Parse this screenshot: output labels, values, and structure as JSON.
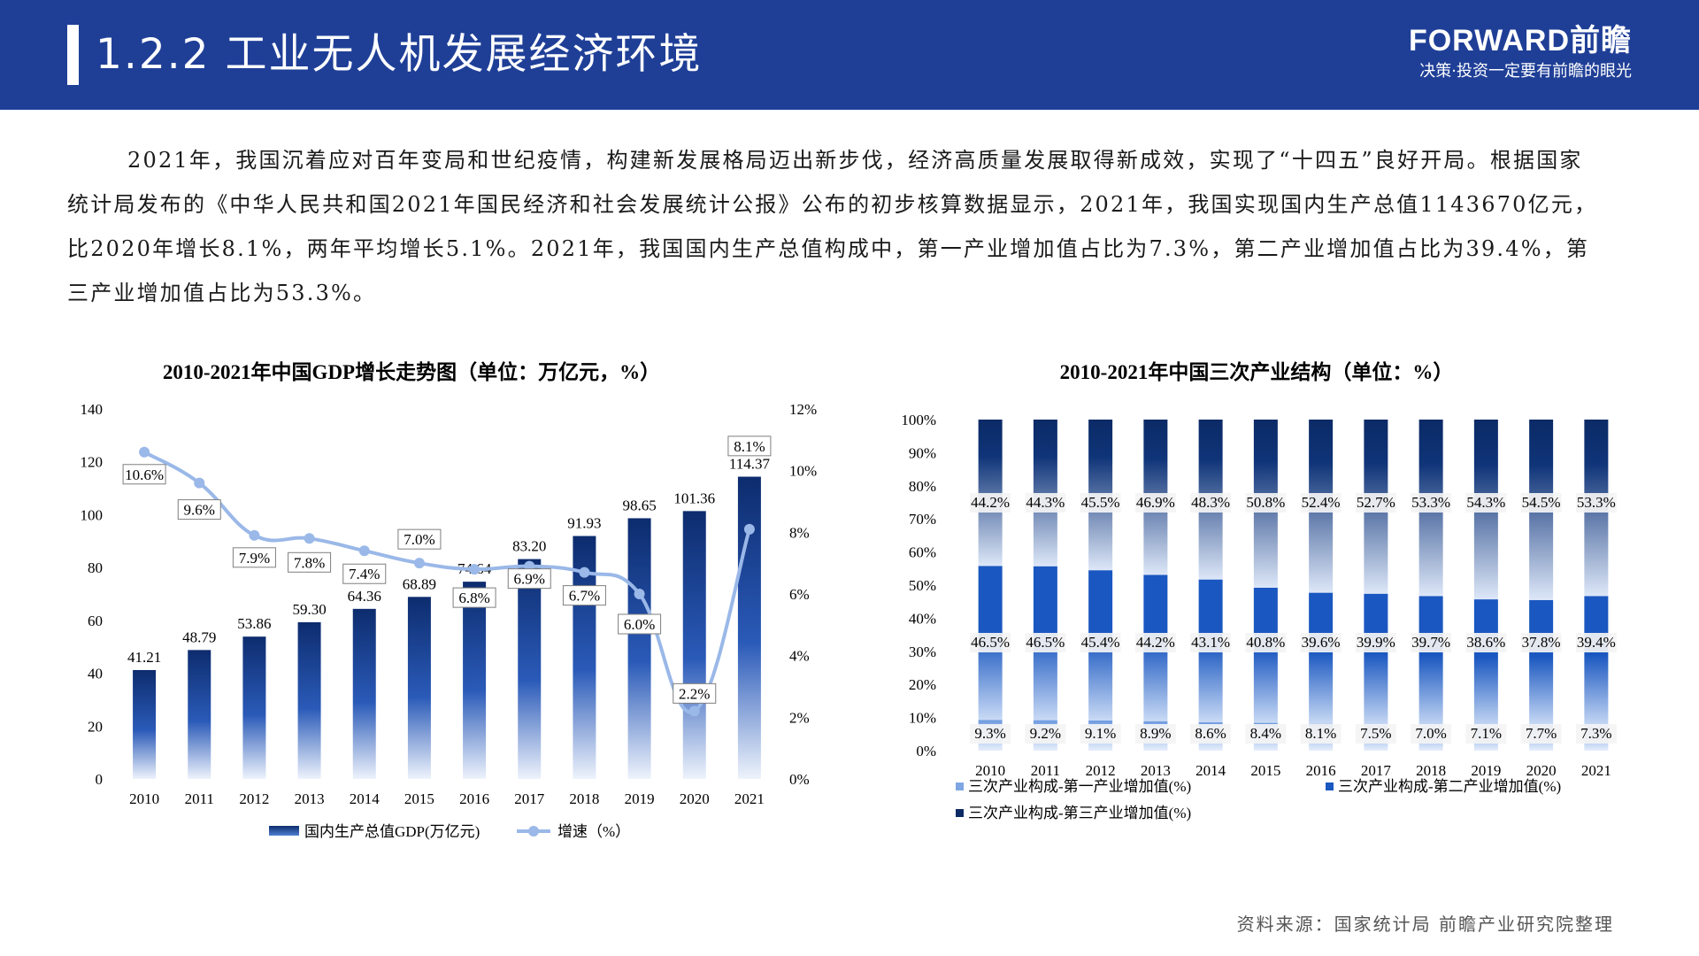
{
  "header": {
    "title": "1.2.2 工业无人机发展经济环境",
    "brand": "FORWARD前瞻",
    "slogan": "决策·投资一定要有前瞻的眼光"
  },
  "intro": "2021年，我国沉着应对百年变局和世纪疫情，构建新发展格局迈出新步伐，经济高质量发展取得新成效，实现了“十四五”良好开局。根据国家统计局发布的《中华人民共和国2021年国民经济和社会发展统计公报》公布的初步核算数据显示，2021年，我国实现国内生产总值1143670亿元，比2020年增长8.1%，两年平均增长5.1%。2021年，我国国内生产总值构成中，第一产业增加值占比为7.3%，第二产业增加值占比为39.4%，第三产业增加值占比为53.3%。",
  "source": "资料来源：国家统计局 前瞻产业研究院整理",
  "colors": {
    "header": "#1f3f97",
    "bar_dark": "#0d2c6e",
    "bar_mid": "#1a57c0",
    "line": "#9ab8e8"
  },
  "chart_data": [
    {
      "type": "bar",
      "title": "2010-2021年中国GDP增长走势图（单位：万亿元，%）",
      "categories": [
        "2010",
        "2011",
        "2012",
        "2013",
        "2014",
        "2015",
        "2016",
        "2017",
        "2018",
        "2019",
        "2020",
        "2021"
      ],
      "y_ticks": [
        "0",
        "20",
        "40",
        "60",
        "80",
        "100",
        "120",
        "140"
      ],
      "y2_ticks": [
        "0%",
        "2%",
        "4%",
        "6%",
        "8%",
        "10%",
        "12%"
      ],
      "ylim": [
        0,
        140
      ],
      "y2lim": [
        0,
        12
      ],
      "series": [
        {
          "name": "国内生产总值GDP(万亿元)",
          "type": "bar",
          "axis": "left",
          "values": [
            41.21,
            48.79,
            53.86,
            59.3,
            64.36,
            68.89,
            74.64,
            83.2,
            91.93,
            98.65,
            101.36,
            114.37
          ],
          "labels": [
            "41.21",
            "48.79",
            "53.86",
            "59.30",
            "64.36",
            "68.89",
            "74.64",
            "83.20",
            "91.93",
            "98.65",
            "101.36",
            "114.37"
          ]
        },
        {
          "name": "增速（%）",
          "type": "line",
          "axis": "right",
          "values": [
            10.6,
            9.6,
            7.9,
            7.8,
            7.4,
            7.0,
            6.8,
            6.9,
            6.7,
            6.0,
            2.2,
            8.1
          ],
          "labels": [
            "10.6%",
            "9.6%",
            "7.9%",
            "7.8%",
            "7.4%",
            "7.0%",
            "6.8%",
            "6.9%",
            "6.7%",
            "6.0%",
            "2.2%",
            "8.1%"
          ]
        }
      ]
    },
    {
      "type": "bar",
      "stacked": true,
      "title": "2010-2021年中国三次产业结构（单位：%）",
      "categories": [
        "2010",
        "2011",
        "2012",
        "2013",
        "2014",
        "2015",
        "2016",
        "2017",
        "2018",
        "2019",
        "2020",
        "2021"
      ],
      "y_ticks": [
        "0%",
        "10%",
        "20%",
        "30%",
        "40%",
        "50%",
        "60%",
        "70%",
        "80%",
        "90%",
        "100%"
      ],
      "ylim": [
        0,
        100
      ],
      "series": [
        {
          "name": "三次产业构成-第一产业增加值(%)",
          "values": [
            9.3,
            9.2,
            9.1,
            8.9,
            8.6,
            8.4,
            8.1,
            7.5,
            7.0,
            7.1,
            7.7,
            7.3
          ],
          "labels": [
            "9.3%",
            "9.2%",
            "9.1%",
            "8.9%",
            "8.6%",
            "8.4%",
            "8.1%",
            "7.5%",
            "7.0%",
            "7.1%",
            "7.7%",
            "7.3%"
          ]
        },
        {
          "name": "三次产业构成-第二产业增加值(%)",
          "values": [
            46.5,
            46.5,
            45.4,
            44.2,
            43.1,
            40.8,
            39.6,
            39.9,
            39.7,
            38.6,
            37.8,
            39.4
          ],
          "labels": [
            "46.5%",
            "46.5%",
            "45.4%",
            "44.2%",
            "43.1%",
            "40.8%",
            "39.6%",
            "39.9%",
            "39.7%",
            "38.6%",
            "37.8%",
            "39.4%"
          ]
        },
        {
          "name": "三次产业构成-第三产业增加值(%)",
          "values": [
            44.2,
            44.3,
            45.5,
            46.9,
            48.3,
            50.8,
            52.4,
            52.7,
            53.3,
            54.3,
            54.5,
            53.3
          ],
          "labels": [
            "44.2%",
            "44.3%",
            "45.5%",
            "46.9%",
            "48.3%",
            "50.8%",
            "52.4%",
            "52.7%",
            "53.3%",
            "54.3%",
            "54.5%",
            "53.3%"
          ]
        }
      ]
    }
  ]
}
